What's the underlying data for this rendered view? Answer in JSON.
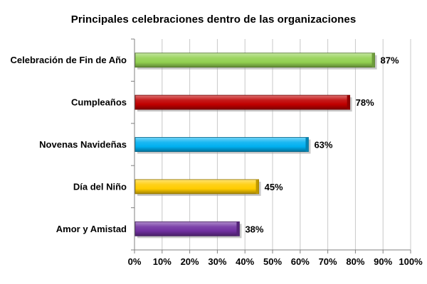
{
  "chart_data": {
    "type": "bar",
    "orientation": "horizontal",
    "title": "Principales celebraciones dentro de las organizaciones",
    "categories": [
      "Celebración de Fin de Año",
      "Cumpleaños",
      "Novenas Navideñas",
      "Día del Niño",
      "Amor y Amistad"
    ],
    "values": [
      87,
      78,
      63,
      45,
      38
    ],
    "value_labels": [
      "87%",
      "78%",
      "63%",
      "45%",
      "38%"
    ],
    "colors": [
      "#92d050",
      "#c00000",
      "#00b0f0",
      "#ffcc00",
      "#7030a0"
    ],
    "xlim": [
      0,
      100
    ],
    "xticks": [
      0,
      10,
      20,
      30,
      40,
      50,
      60,
      70,
      80,
      90,
      100
    ],
    "xtick_labels": [
      "0%",
      "10%",
      "20%",
      "30%",
      "40%",
      "50%",
      "60%",
      "70%",
      "80%",
      "90%",
      "100%"
    ],
    "grid": true,
    "legend": "none",
    "xlabel": "",
    "ylabel": ""
  }
}
